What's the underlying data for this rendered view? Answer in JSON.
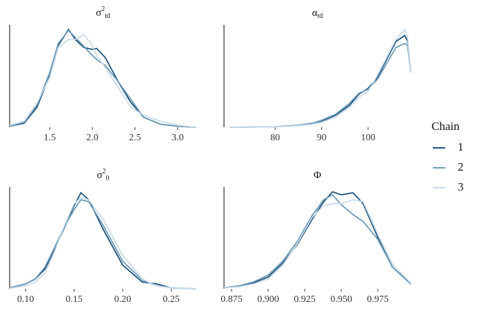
{
  "chart_data": [
    {
      "type": "line",
      "title": "σ",
      "title_sup": "2",
      "title_sub": "td",
      "x": [
        1.03,
        1.2,
        1.35,
        1.5,
        1.6,
        1.72,
        1.8,
        1.9,
        2.0,
        2.05,
        2.15,
        2.3,
        2.45,
        2.6,
        2.8,
        3.0,
        3.22
      ],
      "series": [
        {
          "color": "#1b4f79",
          "values": [
            0.01,
            0.04,
            0.2,
            0.52,
            0.82,
            0.98,
            0.88,
            0.8,
            0.78,
            0.79,
            0.7,
            0.46,
            0.25,
            0.1,
            0.03,
            0.01,
            0.0
          ]
        },
        {
          "color": "#6c9ab6",
          "values": [
            0.01,
            0.05,
            0.22,
            0.55,
            0.84,
            0.97,
            0.9,
            0.81,
            0.72,
            0.68,
            0.62,
            0.46,
            0.28,
            0.1,
            0.03,
            0.01,
            0.0
          ]
        },
        {
          "color": "#c9dbe9",
          "values": [
            0.02,
            0.06,
            0.24,
            0.5,
            0.8,
            0.88,
            0.88,
            0.93,
            0.82,
            0.72,
            0.6,
            0.4,
            0.2,
            0.12,
            0.06,
            0.02,
            0.0
          ]
        }
      ],
      "xlim": [
        1.03,
        3.22
      ],
      "ylim": [
        0,
        1
      ],
      "xticks": [
        1.5,
        {
          "value": 2.0,
          "label": "2.0"
        },
        2.5,
        {
          "value": 3.0,
          "label": "3.0"
        }
      ]
    },
    {
      "type": "line",
      "title": "α",
      "title_sub": "td",
      "x": [
        70.2,
        75,
        80,
        85,
        88,
        90,
        93,
        96,
        98,
        100,
        102,
        104,
        106,
        107.9,
        108.5,
        109.2
      ],
      "series": [
        {
          "color": "#1b4f79",
          "values": [
            0,
            0.002,
            0.005,
            0.02,
            0.04,
            0.06,
            0.12,
            0.22,
            0.33,
            0.39,
            0.5,
            0.68,
            0.86,
            0.92,
            0.86,
            0.55
          ]
        },
        {
          "color": "#6c9ab6",
          "values": [
            0,
            0.002,
            0.005,
            0.02,
            0.04,
            0.07,
            0.13,
            0.24,
            0.34,
            0.38,
            0.48,
            0.64,
            0.8,
            0.84,
            0.82,
            0.55
          ]
        },
        {
          "color": "#c9dbe9",
          "values": [
            0,
            0.002,
            0.004,
            0.015,
            0.03,
            0.05,
            0.1,
            0.2,
            0.3,
            0.36,
            0.52,
            0.7,
            0.88,
            0.98,
            0.9,
            0.55
          ]
        }
      ],
      "xlim": [
        69,
        109.2
      ],
      "ylim": [
        0,
        1
      ],
      "xticks": [
        80,
        90,
        100
      ]
    },
    {
      "type": "line",
      "title": "σ",
      "title_sup": "2",
      "title_sub": "0",
      "x": [
        0.0836,
        0.1,
        0.11,
        0.12,
        0.13,
        0.14,
        0.15,
        0.157,
        0.165,
        0.18,
        0.2,
        0.22,
        0.235,
        0.25,
        0.276
      ],
      "series": [
        {
          "color": "#1b4f79",
          "values": [
            0.01,
            0.05,
            0.1,
            0.2,
            0.4,
            0.62,
            0.84,
            0.97,
            0.9,
            0.6,
            0.24,
            0.07,
            0.05,
            0.01,
            0
          ]
        },
        {
          "color": "#6c9ab6",
          "values": [
            0.01,
            0.05,
            0.1,
            0.22,
            0.42,
            0.63,
            0.8,
            0.9,
            0.88,
            0.64,
            0.28,
            0.09,
            0.03,
            0.01,
            0
          ]
        },
        {
          "color": "#c9dbe9",
          "values": [
            0.005,
            0.03,
            0.07,
            0.16,
            0.38,
            0.64,
            0.86,
            0.92,
            0.9,
            0.7,
            0.34,
            0.1,
            0.03,
            0.01,
            0
          ]
        }
      ],
      "xlim": [
        0.0836,
        0.276
      ],
      "ylim": [
        0,
        1
      ],
      "xticks": [
        {
          "value": 0.1,
          "label": "0.10"
        },
        0.15,
        {
          "value": 0.2,
          "label": "0.20"
        },
        0.25
      ]
    },
    {
      "type": "line",
      "title": "Φ",
      "x": [
        0.8698,
        0.88,
        0.89,
        0.9,
        0.91,
        0.92,
        0.93,
        0.938,
        0.944,
        0.95,
        0.958,
        0.965,
        0.975,
        0.985,
        0.9976
      ],
      "series": [
        {
          "color": "#1b4f79",
          "values": [
            0.01,
            0.03,
            0.06,
            0.12,
            0.26,
            0.45,
            0.7,
            0.88,
            0.98,
            0.95,
            0.97,
            0.86,
            0.52,
            0.22,
            0.05
          ]
        },
        {
          "color": "#6c9ab6",
          "values": [
            0.01,
            0.03,
            0.07,
            0.14,
            0.28,
            0.48,
            0.74,
            0.9,
            0.95,
            0.85,
            0.75,
            0.68,
            0.5,
            0.22,
            0.05
          ]
        },
        {
          "color": "#c9dbe9",
          "values": [
            0.01,
            0.02,
            0.05,
            0.1,
            0.24,
            0.46,
            0.72,
            0.84,
            0.86,
            0.86,
            0.9,
            0.88,
            0.55,
            0.25,
            0.06
          ]
        }
      ],
      "xlim": [
        0.8698,
        0.9976
      ],
      "ylim": [
        0,
        1
      ],
      "xticks": [
        0.875,
        {
          "value": 0.9,
          "label": "0.900"
        },
        0.925,
        {
          "value": 0.95,
          "label": "0.950"
        },
        0.975
      ]
    }
  ],
  "legend": {
    "title": "Chain",
    "position": "right",
    "items": [
      {
        "name": "1",
        "color": "#1b4f79"
      },
      {
        "name": "2",
        "color": "#6c9ab6"
      },
      {
        "name": "3",
        "color": "#c9dbe9"
      }
    ]
  }
}
